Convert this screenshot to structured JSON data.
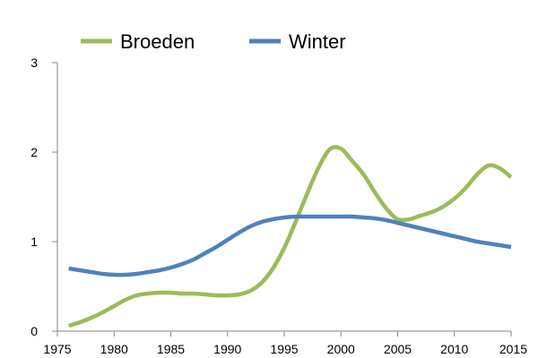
{
  "chart_data": {
    "type": "line",
    "title": "",
    "xlabel": "",
    "ylabel": "",
    "xlim": [
      1975,
      2015
    ],
    "ylim": [
      0,
      3
    ],
    "x_ticks": [
      1975,
      1980,
      1985,
      1990,
      1995,
      2000,
      2005,
      2010,
      2015
    ],
    "y_ticks": [
      0,
      1,
      2,
      3
    ],
    "grid": false,
    "legend": "top",
    "series": [
      {
        "name": "Broeden",
        "color": "#9BBB59",
        "x": [
          1976,
          1977,
          1978,
          1979,
          1980,
          1981,
          1982,
          1983,
          1984,
          1985,
          1986,
          1987,
          1988,
          1989,
          1990,
          1991,
          1992,
          1993,
          1994,
          1995,
          1996,
          1997,
          1998,
          1999,
          2000,
          2001,
          2002,
          2003,
          2004,
          2005,
          2006,
          2007,
          2008,
          2009,
          2010,
          2011,
          2012,
          2013,
          2014,
          2015
        ],
        "values": [
          0.06,
          0.1,
          0.15,
          0.21,
          0.28,
          0.35,
          0.4,
          0.42,
          0.43,
          0.43,
          0.42,
          0.42,
          0.41,
          0.4,
          0.4,
          0.41,
          0.45,
          0.54,
          0.7,
          0.93,
          1.22,
          1.53,
          1.82,
          2.03,
          2.04,
          1.9,
          1.75,
          1.55,
          1.37,
          1.25,
          1.25,
          1.29,
          1.33,
          1.39,
          1.48,
          1.6,
          1.75,
          1.85,
          1.82,
          1.72
        ]
      },
      {
        "name": "Winter",
        "color": "#4F81BD",
        "x": [
          1976,
          1977,
          1978,
          1979,
          1980,
          1981,
          1982,
          1983,
          1984,
          1985,
          1986,
          1987,
          1988,
          1989,
          1990,
          1991,
          1992,
          1993,
          1994,
          1995,
          1996,
          1997,
          1998,
          1999,
          2000,
          2001,
          2002,
          2003,
          2004,
          2005,
          2006,
          2007,
          2008,
          2009,
          2010,
          2011,
          2012,
          2013,
          2014,
          2015
        ],
        "values": [
          0.7,
          0.68,
          0.66,
          0.64,
          0.63,
          0.63,
          0.64,
          0.66,
          0.68,
          0.71,
          0.75,
          0.8,
          0.87,
          0.94,
          1.02,
          1.1,
          1.17,
          1.22,
          1.25,
          1.27,
          1.28,
          1.28,
          1.28,
          1.28,
          1.28,
          1.28,
          1.27,
          1.26,
          1.24,
          1.21,
          1.18,
          1.15,
          1.12,
          1.09,
          1.06,
          1.03,
          1.0,
          0.98,
          0.96,
          0.94
        ]
      }
    ]
  }
}
